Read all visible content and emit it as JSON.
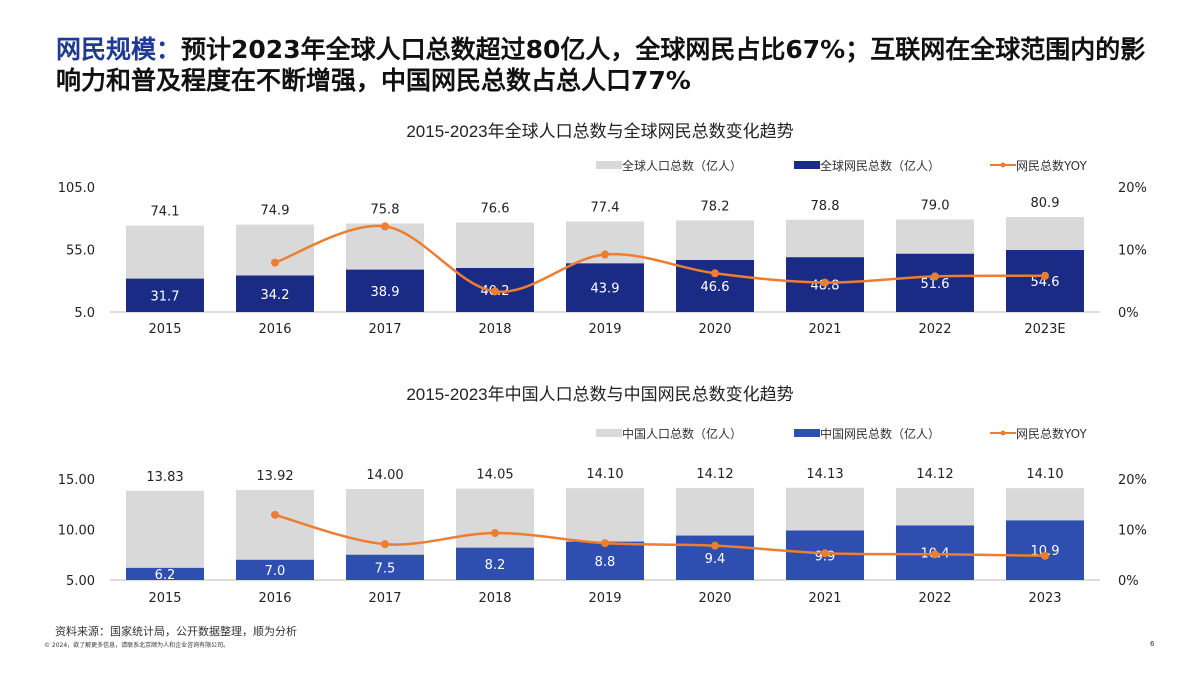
{
  "header": {
    "title_highlight": "网民规模：",
    "title_rest": "预计2023年全球人口总数超过80亿人，全球网民占比67%；互联网在全球范围内的影响力和普及程度在不断增强，中国网民总数占总人口77%"
  },
  "colors": {
    "population": "#d9d9d9",
    "global_netizens": "#1a2b86",
    "china_netizens": "#2e4fb0",
    "yoy": "#ed7d31",
    "title_accent": "#1f3a93"
  },
  "chart_data": [
    {
      "type": "bar+line",
      "title": "2015-2023年全球人口总数与全球网民总数变化趋势",
      "categories": [
        "2015",
        "2016",
        "2017",
        "2018",
        "2019",
        "2020",
        "2021",
        "2022",
        "2023E"
      ],
      "left_axis": {
        "range": [
          5,
          105
        ],
        "ticks": [
          "5.0",
          "55.0",
          "105.0"
        ]
      },
      "right_axis": {
        "range": [
          0,
          20
        ],
        "ticks": [
          "0%",
          "10%",
          "20%"
        ]
      },
      "series": [
        {
          "name": "全球人口总数（亿人）",
          "type": "bar",
          "values": [
            "74.1",
            "74.9",
            "75.8",
            "76.6",
            "77.4",
            "78.2",
            "78.8",
            "79.0",
            "80.9"
          ]
        },
        {
          "name": "全球网民总数（亿人）",
          "type": "bar",
          "values": [
            "31.7",
            "34.2",
            "38.9",
            "40.2",
            "43.9",
            "46.6",
            "48.8",
            "51.6",
            "54.6"
          ]
        },
        {
          "name": "网民总数YOY",
          "type": "line",
          "values": [
            null,
            7.9,
            13.7,
            3.3,
            9.2,
            6.2,
            4.7,
            5.7,
            5.8
          ]
        }
      ],
      "legend": "top-right",
      "grid": false
    },
    {
      "type": "bar+line",
      "title": "2015-2023年中国人口总数与中国网民总数变化趋势",
      "categories": [
        "2015",
        "2016",
        "2017",
        "2018",
        "2019",
        "2020",
        "2021",
        "2022",
        "2023"
      ],
      "left_axis": {
        "range": [
          5,
          15
        ],
        "ticks": [
          "5.00",
          "10.00",
          "15.00"
        ]
      },
      "right_axis": {
        "range": [
          0,
          20
        ],
        "ticks": [
          "0%",
          "10%",
          "20%"
        ]
      },
      "series": [
        {
          "name": "中国人口总数（亿人）",
          "type": "bar",
          "values": [
            "13.83",
            "13.92",
            "14.00",
            "14.05",
            "14.10",
            "14.12",
            "14.13",
            "14.12",
            "14.10"
          ]
        },
        {
          "name": "中国网民总数（亿人）",
          "type": "bar",
          "values": [
            "6.2",
            "7.0",
            "7.5",
            "8.2",
            "8.8",
            "9.4",
            "9.9",
            "10.4",
            "10.9"
          ]
        },
        {
          "name": "网民总数YOY",
          "type": "line",
          "values": [
            null,
            12.9,
            7.1,
            9.3,
            7.3,
            6.8,
            5.3,
            5.1,
            4.8
          ]
        }
      ],
      "legend": "top-right",
      "grid": false
    }
  ],
  "footer": {
    "source": "资料来源：国家统计局，公开数据整理，顺为分析",
    "copyright": "© 2024，欲了解更多信息，请联系北京顺为人和企业咨询有限公司。",
    "page": "6"
  }
}
